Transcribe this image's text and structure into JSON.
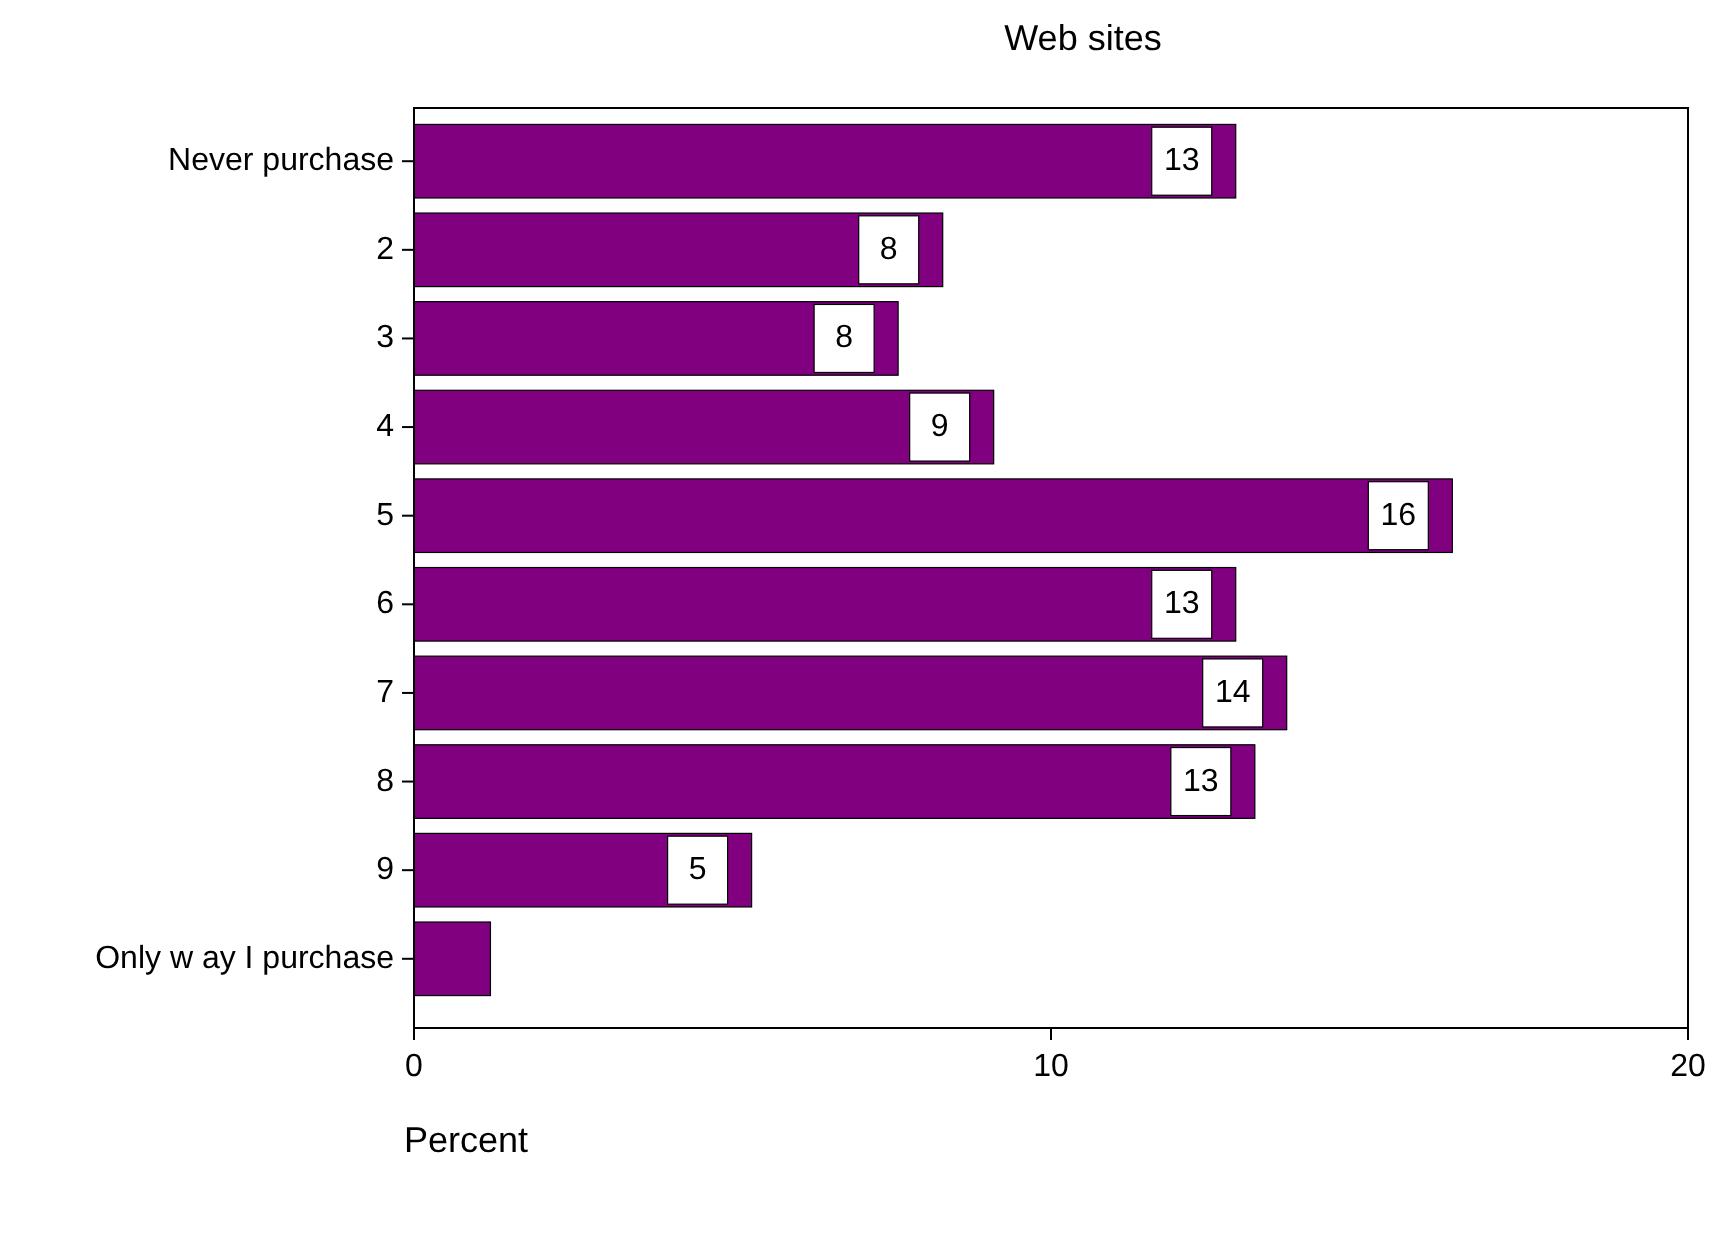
{
  "chart_data": {
    "type": "bar",
    "orientation": "horizontal",
    "title": "Web sites",
    "xlabel": "Percent",
    "categories": [
      "Never purchase",
      "2",
      "3",
      "4",
      "5",
      "6",
      "7",
      "8",
      "9",
      "Only w ay I purchase"
    ],
    "values": [
      12.9,
      8.3,
      7.6,
      9.1,
      16.3,
      12.9,
      13.7,
      13.2,
      5.3,
      1.2
    ],
    "value_labels": [
      "13",
      "8",
      "8",
      "9",
      "16",
      "13",
      "14",
      "13",
      "5",
      null
    ],
    "color": "#800080",
    "xlim": [
      0,
      20
    ],
    "xticks": [
      0,
      10,
      20
    ]
  }
}
